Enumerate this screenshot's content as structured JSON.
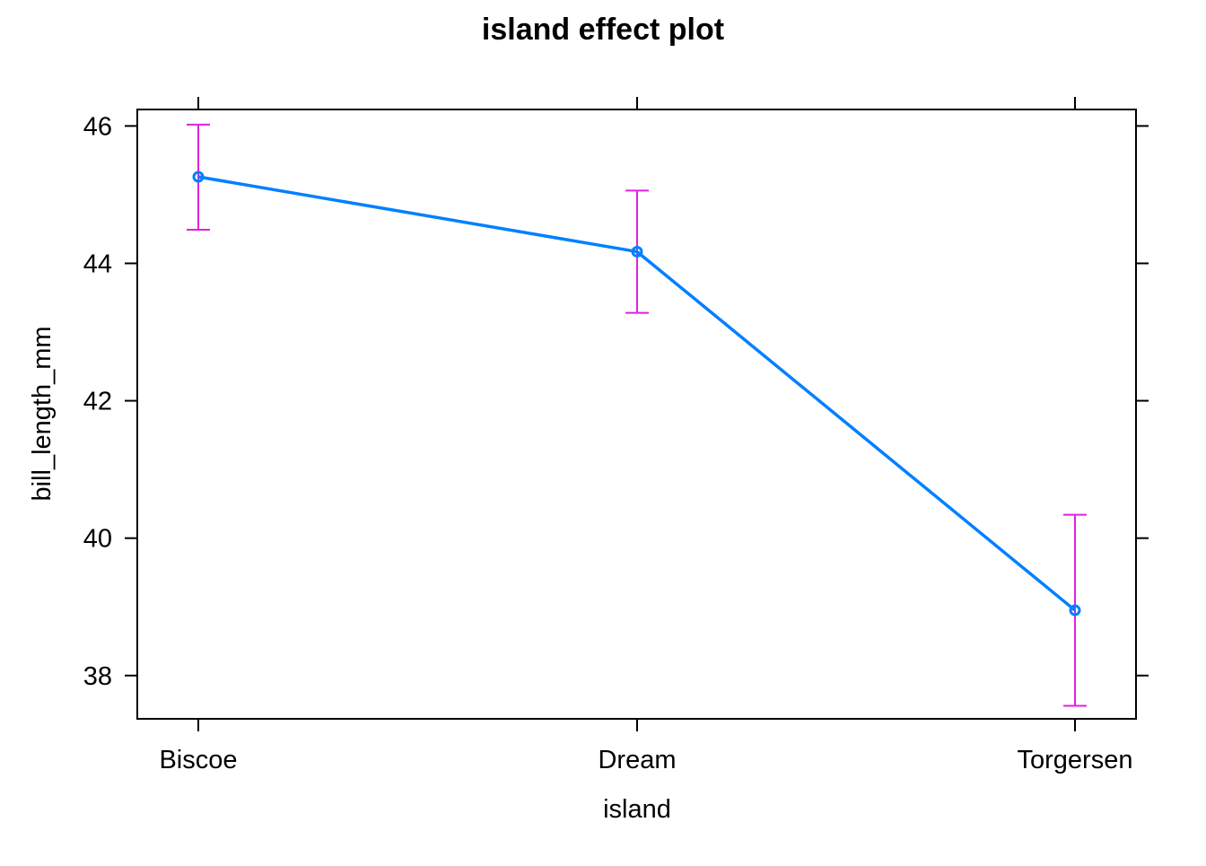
{
  "chart_data": {
    "type": "line",
    "title": "island effect plot",
    "xlabel": "island",
    "ylabel": "bill_length_mm",
    "categories": [
      "Biscoe",
      "Dream",
      "Torgersen"
    ],
    "series": [
      {
        "values": [
          45.26,
          44.17,
          38.95
        ],
        "lower": [
          44.49,
          43.28,
          37.56
        ],
        "upper": [
          46.02,
          45.06,
          40.34
        ]
      }
    ],
    "ylim": [
      37.37,
      46.24
    ],
    "yticks": [
      38,
      40,
      42,
      44,
      46
    ],
    "grid": false,
    "legend": "none",
    "colors": {
      "line": "#0080ff",
      "errorbar": "#e020e0",
      "frame": "#000000"
    }
  }
}
